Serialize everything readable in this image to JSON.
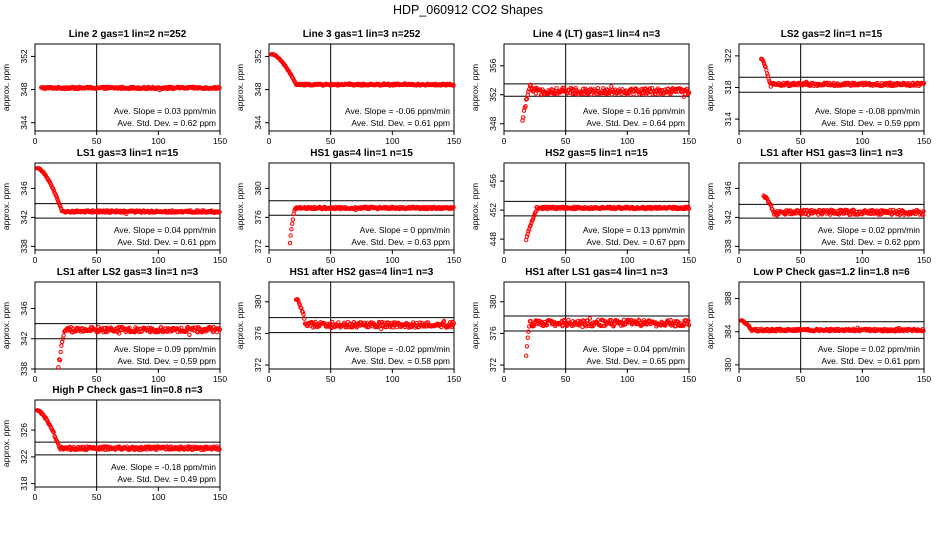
{
  "figure_title": "HDP_060912  CO2 Shapes",
  "chart_data": [
    {
      "type": "scatter",
      "title": "Line 2 gas=1 lin=2 n=252",
      "ylabel": "approx. ppm",
      "xlim": [
        0,
        150
      ],
      "ylim": [
        343,
        353.5
      ],
      "xticks": [
        0,
        50,
        100,
        150
      ],
      "yticks": [
        344,
        348,
        352
      ],
      "hlines": [],
      "vline": 50,
      "start": 5,
      "base": 348.2,
      "noise": 0.12,
      "profile": "flat",
      "mean_slope_label": "Ave. Slope =",
      "mean_slope": "0.03",
      "slope_unit": "ppm/min",
      "std_label": "Ave. Std. Dev. =",
      "std": "0.62",
      "std_unit": "ppm"
    },
    {
      "type": "scatter",
      "title": "Line 3 gas=1 lin=3 n=252",
      "ylabel": "approx. ppm",
      "xlim": [
        0,
        150
      ],
      "ylim": [
        343,
        353.5
      ],
      "xticks": [
        0,
        50,
        100,
        150
      ],
      "yticks": [
        344,
        348,
        352
      ],
      "hlines": [],
      "vline": 50,
      "start": 2,
      "base": 348.6,
      "noise": 0.1,
      "profile": "high-start",
      "high": 352.3,
      "drop_end": 22,
      "mean_slope_label": "Ave. Slope =",
      "mean_slope": "-0.06",
      "slope_unit": "ppm/min",
      "std_label": "Ave. Std. Dev. =",
      "std": "0.61",
      "std_unit": "ppm"
    },
    {
      "type": "scatter",
      "title": "Line 4 (LT) gas=1 lin=4 n=3",
      "ylabel": "approx. ppm",
      "xlim": [
        0,
        150
      ],
      "ylim": [
        347,
        359
      ],
      "xticks": [
        0,
        50,
        100,
        150
      ],
      "yticks": [
        348,
        352,
        356
      ],
      "hlines": [
        353.5,
        351.8
      ],
      "vline": 50,
      "start": 15,
      "base": 352.5,
      "noise": 0.45,
      "profile": "low-start",
      "low": 348.3,
      "rise_end": 22,
      "overshoot": 353.7,
      "mean_slope_label": "Ave. Slope =",
      "mean_slope": "0.16",
      "slope_unit": "ppm/min",
      "std_label": "Ave. Std. Dev. =",
      "std": "0.64",
      "std_unit": "ppm"
    },
    {
      "type": "scatter",
      "title": "LS2 gas=2 lin=1 n=15",
      "ylabel": "approx. ppm",
      "xlim": [
        0,
        150
      ],
      "ylim": [
        312.5,
        323.5
      ],
      "xticks": [
        0,
        50,
        100,
        150
      ],
      "yticks": [
        314,
        318,
        322
      ],
      "hlines": [
        319.3,
        317.4
      ],
      "vline": 50,
      "start": 18,
      "base": 318.4,
      "noise": 0.2,
      "profile": "high-start",
      "high": 321.6,
      "drop_end": 25,
      "mean_slope_label": "Ave. Slope =",
      "mean_slope": "-0.08",
      "slope_unit": "ppm/min",
      "std_label": "Ave. Std. Dev. =",
      "std": "0.59",
      "std_unit": "ppm"
    },
    {
      "type": "scatter",
      "title": "LS1 gas=3 lin=1 n=15",
      "ylabel": "approx. ppm",
      "xlim": [
        0,
        150
      ],
      "ylim": [
        337.5,
        349.5
      ],
      "xticks": [
        0,
        50,
        100,
        150
      ],
      "yticks": [
        338,
        342,
        346
      ],
      "hlines": [
        343.9,
        341.9
      ],
      "vline": 50,
      "start": 2,
      "base": 342.8,
      "noise": 0.15,
      "profile": "high-start",
      "high": 348.8,
      "drop_end": 22,
      "mean_slope_label": "Ave. Slope =",
      "mean_slope": "0.04",
      "slope_unit": "ppm/min",
      "std_label": "Ave. Std. Dev. =",
      "std": "0.61",
      "std_unit": "ppm"
    },
    {
      "type": "scatter",
      "title": "HS1 gas=4 lin=1 n=15",
      "ylabel": "approx. ppm",
      "xlim": [
        0,
        150
      ],
      "ylim": [
        371.5,
        383.5
      ],
      "xticks": [
        0,
        50,
        100,
        150
      ],
      "yticks": [
        372,
        376,
        380
      ],
      "hlines": [
        378.3,
        376.3
      ],
      "vline": 50,
      "start": 17,
      "base": 377.3,
      "noise": 0.15,
      "profile": "low-start",
      "low": 372.5,
      "rise_end": 21,
      "overshoot": 377.4,
      "mean_slope_label": "Ave. Slope =",
      "mean_slope": "0",
      "slope_unit": "ppm/min",
      "std_label": "Ave. Std. Dev. =",
      "std": "0.63",
      "std_unit": "ppm"
    },
    {
      "type": "scatter",
      "title": "HS2 gas=5 lin=1 n=15",
      "ylabel": "approx. ppm",
      "xlim": [
        0,
        150
      ],
      "ylim": [
        446.5,
        458.5
      ],
      "xticks": [
        0,
        50,
        100,
        150
      ],
      "yticks": [
        448,
        452,
        456
      ],
      "hlines": [
        453.2,
        451.2
      ],
      "vline": 50,
      "start": 18,
      "base": 452.3,
      "noise": 0.15,
      "profile": "low-start",
      "low": 447.8,
      "rise_end": 26,
      "overshoot": 451.9,
      "mean_slope_label": "Ave. Slope =",
      "mean_slope": "0.13",
      "slope_unit": "ppm/min",
      "std_label": "Ave. Std. Dev. =",
      "std": "0.67",
      "std_unit": "ppm"
    },
    {
      "type": "scatter",
      "title": "LS1 after HS1 gas=3 lin=1 n=3",
      "ylabel": "approx. ppm",
      "xlim": [
        0,
        150
      ],
      "ylim": [
        337.5,
        349.5
      ],
      "xticks": [
        0,
        50,
        100,
        150
      ],
      "yticks": [
        338,
        342,
        346
      ],
      "hlines": [
        343.8,
        341.9
      ],
      "vline": 50,
      "start": 20,
      "base": 342.7,
      "noise": 0.35,
      "profile": "high-start",
      "high": 344.9,
      "drop_end": 28,
      "mean_slope_label": "Ave. Slope =",
      "mean_slope": "0.02",
      "slope_unit": "ppm/min",
      "std_label": "Ave. Std. Dev. =",
      "std": "0.62",
      "std_unit": "ppm"
    },
    {
      "type": "scatter",
      "title": "LS1 after LS2 gas=3 lin=1 n=3",
      "ylabel": "approx. ppm",
      "xlim": [
        0,
        150
      ],
      "ylim": [
        338,
        349.5
      ],
      "xticks": [
        0,
        50,
        100,
        150
      ],
      "yticks": [
        338,
        342,
        346
      ],
      "hlines": [
        344,
        342
      ],
      "vline": 50,
      "start": 19,
      "base": 343.2,
      "noise": 0.35,
      "profile": "low-start",
      "low": 338.2,
      "rise_end": 24,
      "overshoot": 343.1,
      "mean_slope_label": "Ave. Slope =",
      "mean_slope": "0.09",
      "slope_unit": "ppm/min",
      "std_label": "Ave. Std. Dev. =",
      "std": "0.59",
      "std_unit": "ppm"
    },
    {
      "type": "scatter",
      "title": "HS1 after HS2 gas=4 lin=1 n=3",
      "ylabel": "approx. ppm",
      "xlim": [
        0,
        150
      ],
      "ylim": [
        371.5,
        382.5
      ],
      "xticks": [
        0,
        50,
        100,
        150
      ],
      "yticks": [
        372,
        376,
        380
      ],
      "hlines": [
        378,
        376.1
      ],
      "vline": 50,
      "start": 22,
      "base": 377.1,
      "noise": 0.35,
      "profile": "high-start",
      "high": 380.3,
      "drop_end": 30,
      "mean_slope_label": "Ave. Slope =",
      "mean_slope": "-0.02",
      "slope_unit": "ppm/min",
      "std_label": "Ave. Std. Dev. =",
      "std": "0.58",
      "std_unit": "ppm"
    },
    {
      "type": "scatter",
      "title": "HS1 after LS1 gas=4 lin=1 n=3",
      "ylabel": "approx. ppm",
      "xlim": [
        0,
        150
      ],
      "ylim": [
        371.5,
        382.5
      ],
      "xticks": [
        0,
        50,
        100,
        150
      ],
      "yticks": [
        372,
        376,
        380
      ],
      "hlines": [
        378.2,
        376.3
      ],
      "vline": 50,
      "start": 18,
      "base": 377.3,
      "noise": 0.4,
      "profile": "low-start",
      "low": 373.3,
      "rise_end": 21,
      "overshoot": 377.5,
      "mean_slope_label": "Ave. Slope =",
      "mean_slope": "0.04",
      "slope_unit": "ppm/min",
      "std_label": "Ave. Std. Dev. =",
      "std": "0.65",
      "std_unit": "ppm"
    },
    {
      "type": "scatter",
      "title": "Low P Check gas=1.2 lin=1.8 n=6",
      "ylabel": "approx. ppm",
      "xlim": [
        0,
        150
      ],
      "ylim": [
        379.5,
        390
      ],
      "xticks": [
        0,
        50,
        100,
        150
      ],
      "yticks": [
        380,
        384,
        388
      ],
      "hlines": [
        385.2,
        383.2
      ],
      "vline": 50,
      "start": 2,
      "base": 384.2,
      "noise": 0.15,
      "profile": "high-start",
      "high": 385.3,
      "drop_end": 10,
      "mean_slope_label": "Ave. Slope =",
      "mean_slope": "0.02",
      "slope_unit": "ppm/min",
      "std_label": "Ave. Std. Dev. =",
      "std": "0.61",
      "std_unit": "ppm"
    },
    {
      "type": "scatter",
      "title": "High P Check gas=1 lin=0.8 n=3",
      "ylabel": "approx. ppm",
      "xlim": [
        0,
        150
      ],
      "ylim": [
        317.5,
        330.5
      ],
      "xticks": [
        0,
        50,
        100,
        150
      ],
      "yticks": [
        318,
        322,
        326
      ],
      "hlines": [
        324.2,
        322.3
      ],
      "vline": 50,
      "start": 2,
      "base": 323.3,
      "noise": 0.25,
      "profile": "high-start",
      "high": 328.9,
      "drop_end": 20,
      "mean_slope_label": "Ave. Slope =",
      "mean_slope": "-0.18",
      "slope_unit": "ppm/min",
      "std_label": "Ave. Std. Dev. =",
      "std": "0.49",
      "std_unit": "ppm"
    }
  ]
}
